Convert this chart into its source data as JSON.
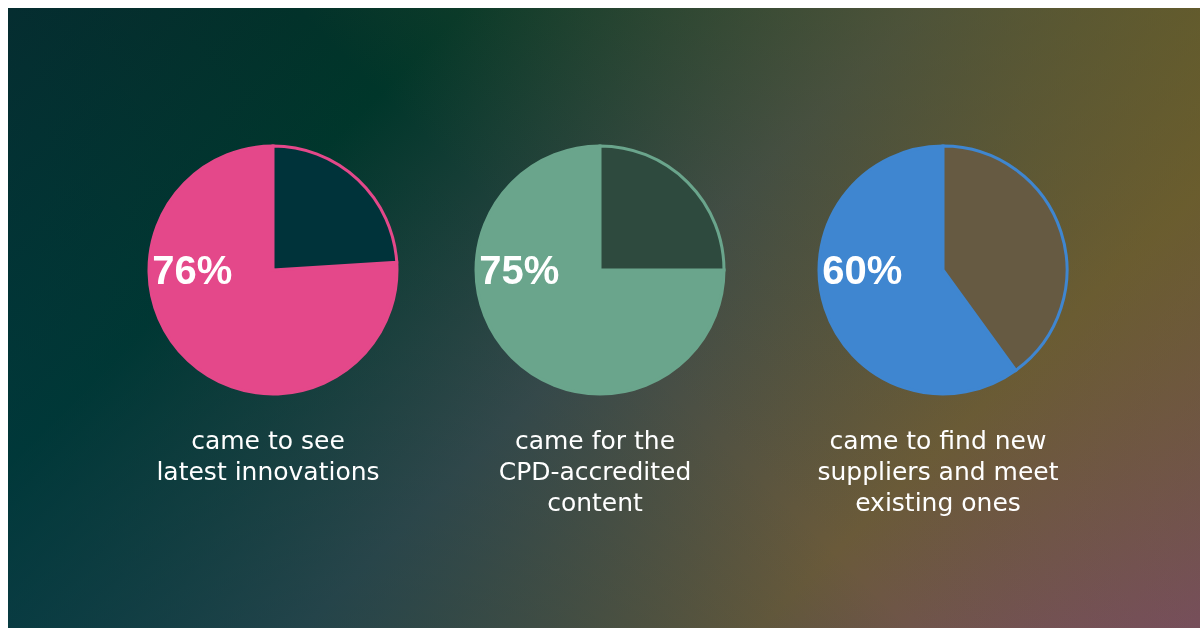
{
  "chart_data": [
    {
      "type": "pie",
      "title": "came to see\nlatest innovations",
      "categories": [
        null,
        null
      ],
      "values": [
        76,
        24
      ],
      "colors": [
        "#e4488a",
        "#00333a"
      ],
      "value_labels": [
        "76%",
        null
      ]
    },
    {
      "type": "pie",
      "title": "came for the\nCPD-accredited\ncontent",
      "categories": [
        null,
        null
      ],
      "values": [
        75,
        25
      ],
      "colors": [
        "#6aa58c",
        "#2e4a3e"
      ],
      "value_labels": [
        "75%",
        null
      ]
    },
    {
      "type": "pie",
      "title": "came to find new\nsuppliers and meet\nexisting ones",
      "categories": [
        null,
        null
      ],
      "values": [
        60,
        40
      ],
      "colors": [
        "#3f86d0",
        "#665a42"
      ],
      "value_labels": [
        "60%",
        null
      ]
    }
  ]
}
